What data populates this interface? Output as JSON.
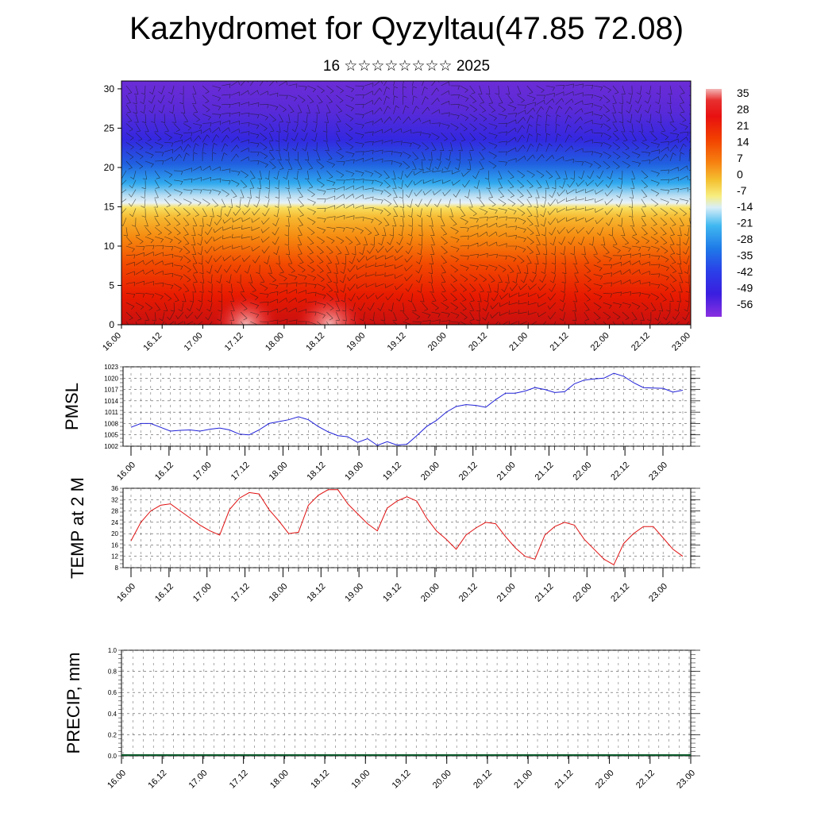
{
  "title": "Kazhydromet for Qyzyltau(47.85 72.08)",
  "subtitle": "16 ☆☆☆☆☆☆☆☆ 2025",
  "colors": {
    "pmsl_line": "#2020d8",
    "temp_line": "#e01010",
    "precip_line": "#0a5a2a",
    "grid": "#555555"
  },
  "chart_data": [
    {
      "type": "heatmap",
      "title": "",
      "xlabel": "",
      "ylabel": "",
      "x_ticks": [
        "16.00",
        "16.12",
        "17.00",
        "17.12",
        "18.00",
        "18.12",
        "19.00",
        "19.12",
        "20.00",
        "20.12",
        "21.00",
        "21.12",
        "22.00",
        "22.12",
        "23.00"
      ],
      "y_ticks": [
        0,
        5,
        10,
        15,
        20,
        25,
        30
      ],
      "ylim": [
        0,
        31
      ],
      "colorbar": {
        "labels": [
          "35",
          "28",
          "21",
          "14",
          "7",
          "0",
          "-7",
          "-14",
          "-21",
          "-28",
          "-35",
          "-42",
          "-49",
          "-56"
        ]
      },
      "overlay": "wind barbs"
    },
    {
      "type": "line",
      "ylabel": "PMSL",
      "x_ticks": [
        "16.00",
        "16.12",
        "17.00",
        "17.12",
        "18.00",
        "18.12",
        "19.00",
        "19.12",
        "20.00",
        "20.12",
        "21.00",
        "21.12",
        "22.00",
        "22.12",
        "23.00"
      ],
      "y_ticks": [
        "1002",
        "1005",
        "1008",
        "1011",
        "1014",
        "1017",
        "1020",
        "1023"
      ],
      "ylim": [
        1002,
        1023
      ],
      "x": [
        0,
        1,
        2,
        3,
        4,
        5,
        6,
        7,
        8,
        9,
        10,
        11,
        12,
        13,
        14,
        15,
        16,
        17,
        18,
        19,
        20,
        21,
        22,
        23,
        24,
        25,
        26,
        27,
        28,
        29,
        30,
        31,
        32,
        33,
        34,
        35,
        36,
        37,
        38,
        39,
        40,
        41,
        42,
        43,
        44,
        45,
        46,
        47,
        48,
        49,
        50,
        51,
        52,
        53,
        54,
        55,
        56
      ],
      "values": [
        1007.0,
        1008.0,
        1008.0,
        1007.0,
        1006.0,
        1006.2,
        1006.3,
        1006.0,
        1006.5,
        1006.8,
        1006.3,
        1005.2,
        1005.0,
        1006.3,
        1008.0,
        1008.5,
        1009.0,
        1009.8,
        1009.0,
        1007.2,
        1005.8,
        1004.8,
        1004.5,
        1003.0,
        1004.0,
        1002.2,
        1003.2,
        1002.3,
        1002.5,
        1004.8,
        1007.2,
        1008.8,
        1011.0,
        1012.5,
        1013.0,
        1012.8,
        1012.3,
        1014.3,
        1016.0,
        1016.0,
        1016.6,
        1017.5,
        1017.0,
        1016.2,
        1016.4,
        1018.5,
        1019.5,
        1019.8,
        1020.0,
        1021.3,
        1020.5,
        1018.8,
        1017.5,
        1017.4,
        1017.3,
        1016.3,
        1016.8
      ]
    },
    {
      "type": "line",
      "ylabel": "TEMP at 2 M",
      "x_ticks": [
        "16.00",
        "16.12",
        "17.00",
        "17.12",
        "18.00",
        "18.12",
        "19.00",
        "19.12",
        "20.00",
        "20.12",
        "21.00",
        "21.12",
        "22.00",
        "22.12",
        "23.00"
      ],
      "y_ticks": [
        "8",
        "12",
        "16",
        "20",
        "24",
        "28",
        "32",
        "36"
      ],
      "ylim": [
        8,
        36
      ],
      "x": [
        0,
        1,
        2,
        3,
        4,
        5,
        6,
        7,
        8,
        9,
        10,
        11,
        12,
        13,
        14,
        15,
        16,
        17,
        18,
        19,
        20,
        21,
        22,
        23,
        24,
        25,
        26,
        27,
        28,
        29,
        30,
        31,
        32,
        33,
        34,
        35,
        36,
        37,
        38,
        39,
        40,
        41,
        42,
        43,
        44,
        45,
        46,
        47,
        48,
        49,
        50,
        51,
        52,
        53,
        54,
        55,
        56
      ],
      "values": [
        17.5,
        24.0,
        28.0,
        30.0,
        30.5,
        28.0,
        25.5,
        23.0,
        21.0,
        19.5,
        28.5,
        32.5,
        34.5,
        34.0,
        28.5,
        24.5,
        20.0,
        20.5,
        30.0,
        33.5,
        35.5,
        35.5,
        30.5,
        27.0,
        23.5,
        21.0,
        29.0,
        31.5,
        33.0,
        31.5,
        25.5,
        21.0,
        18.0,
        14.5,
        19.5,
        22.0,
        24.0,
        23.5,
        19.0,
        15.0,
        12.0,
        11.0,
        19.5,
        22.5,
        24.0,
        23.0,
        18.0,
        14.5,
        11.0,
        9.0,
        16.5,
        20.0,
        22.5,
        22.5,
        18.5,
        14.5,
        12.0
      ]
    },
    {
      "type": "line",
      "ylabel": "PRECIP, mm",
      "x_ticks": [
        "16.00",
        "16.12",
        "17.00",
        "17.12",
        "18.00",
        "18.12",
        "19.00",
        "19.12",
        "20.00",
        "20.12",
        "21.00",
        "21.12",
        "22.00",
        "22.12",
        "23.00"
      ],
      "y_ticks": [
        "0.0",
        "0.2",
        "0.4",
        "0.6",
        "0.8",
        "1.0"
      ],
      "ylim": [
        0,
        1
      ],
      "values": [
        0,
        0,
        0,
        0,
        0,
        0,
        0,
        0,
        0,
        0,
        0,
        0,
        0,
        0,
        0,
        0,
        0,
        0,
        0,
        0,
        0,
        0,
        0,
        0,
        0,
        0,
        0,
        0,
        0,
        0,
        0,
        0,
        0,
        0,
        0,
        0,
        0,
        0,
        0,
        0,
        0,
        0,
        0,
        0,
        0,
        0,
        0,
        0,
        0,
        0,
        0,
        0,
        0,
        0,
        0,
        0,
        0
      ]
    }
  ]
}
